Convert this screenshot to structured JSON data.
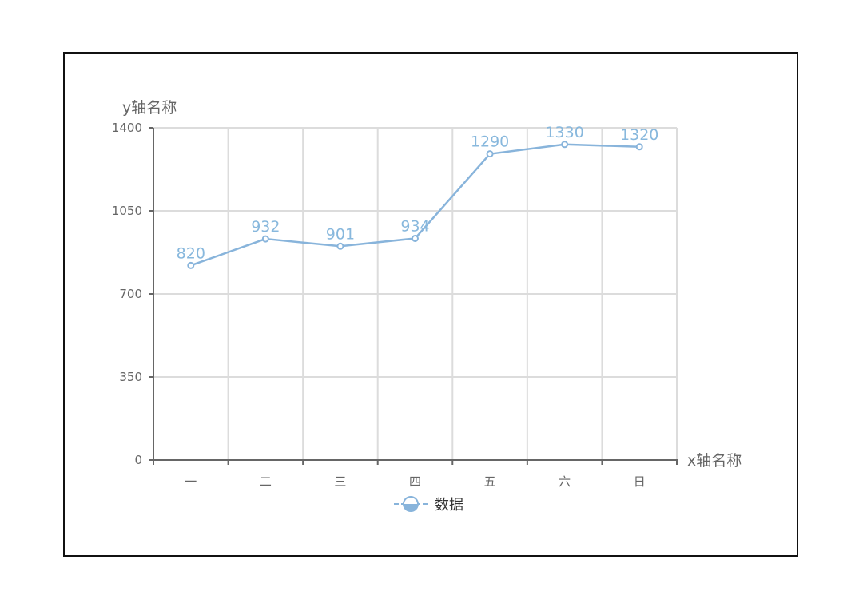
{
  "chart_data": {
    "type": "line",
    "categories": [
      "一",
      "二",
      "三",
      "四",
      "五",
      "六",
      "日"
    ],
    "series": [
      {
        "name": "数据",
        "values": [
          820,
          932,
          901,
          934,
          1290,
          1330,
          1320
        ]
      }
    ],
    "xlabel": "x轴名称",
    "ylabel": "y轴名称",
    "ylim": [
      0,
      1400
    ],
    "yticks": [
      0,
      350,
      700,
      1050,
      1400
    ],
    "grid": true,
    "legend": "bottom-center",
    "data_labels": true
  },
  "colors": {
    "series": "#88b4db",
    "label": "#88b8dd",
    "grid": "#dcdcdc",
    "axis": "#666666"
  }
}
